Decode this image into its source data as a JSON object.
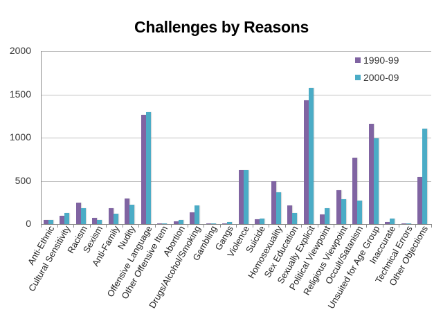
{
  "chart_data": {
    "type": "bar",
    "title": "Challenges by Reasons",
    "xlabel": "",
    "ylabel": "",
    "ylim": [
      0,
      2000
    ],
    "yticks": [
      0,
      500,
      1000,
      1500,
      2000
    ],
    "grid": true,
    "legend_position": "top-right",
    "categories": [
      "Anti-Ethnic",
      "Cultural Sensitivity",
      "Racism",
      "Sexism",
      "Anti-Family",
      "Nudity",
      "Offensive Language",
      "Other Offensive Item",
      "Abortion",
      "Drugs/Alcohol/Smoking",
      "Gambling",
      "Gangs",
      "Violence",
      "Suicide",
      "Homosexuality",
      "Sex Education",
      "Sexually Explicit",
      "Political Viewpoint",
      "Religious Viewpoint",
      "Occult/Satanism",
      "Unsuited for Age Group",
      "Inaccurate",
      "Technical Errors",
      "Other Objections"
    ],
    "series": [
      {
        "name": "1990-99",
        "color": "#8064a2",
        "values": [
          45,
          95,
          245,
          75,
          185,
          295,
          1260,
          8,
          30,
          135,
          2,
          2,
          625,
          55,
          495,
          215,
          1430,
          115,
          395,
          770,
          1160,
          25,
          8,
          545
        ]
      },
      {
        "name": "2000-09",
        "color": "#4bacc6",
        "values": [
          45,
          125,
          185,
          45,
          120,
          225,
          1295,
          8,
          45,
          215,
          8,
          20,
          620,
          60,
          365,
          125,
          1575,
          180,
          290,
          275,
          990,
          65,
          2,
          1100
        ]
      }
    ]
  }
}
